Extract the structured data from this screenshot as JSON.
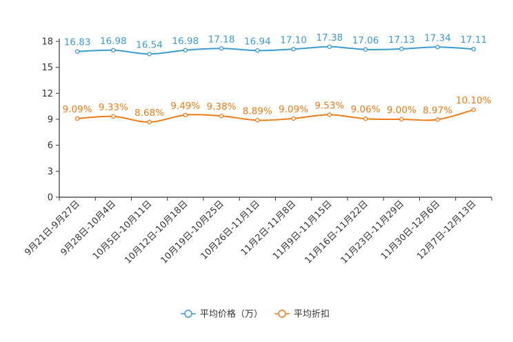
{
  "chart_data": {
    "type": "line",
    "categories": [
      "9月21日-9月27日",
      "9月28日-10月4日",
      "10月5日-10月11日",
      "10月12日-10月18日",
      "10月19日-10月25日",
      "10月26日-11月1日",
      "11月2日-11月8日",
      "11月9日-11月15日",
      "11月16日-11月22日",
      "11月23日-11月29日",
      "11月30日-12月6日",
      "12月7日-12月13日"
    ],
    "series": [
      {
        "name": "平均价格（万）",
        "color": "#3a9bd0",
        "values": [
          16.83,
          16.98,
          16.54,
          16.98,
          17.18,
          16.94,
          17.1,
          17.38,
          17.06,
          17.13,
          17.34,
          17.11
        ],
        "labels": [
          "16.83",
          "16.98",
          "16.54",
          "16.98",
          "17.18",
          "16.94",
          "17.10",
          "17.38",
          "17.06",
          "17.13",
          "17.34",
          "17.11"
        ]
      },
      {
        "name": "平均折扣",
        "color": "#f07a12",
        "values": [
          9.09,
          9.33,
          8.68,
          9.49,
          9.38,
          8.89,
          9.09,
          9.53,
          9.06,
          9.0,
          8.97,
          10.1
        ],
        "labels": [
          "9.09%",
          "9.33%",
          "8.68%",
          "9.49%",
          "9.38%",
          "8.89%",
          "9.09%",
          "9.53%",
          "9.06%",
          "9.00%",
          "8.97%",
          "10.10%"
        ]
      }
    ],
    "yticks": [
      "0",
      "3",
      "6",
      "9",
      "12",
      "15",
      "18"
    ],
    "ylim": [
      0,
      18
    ],
    "grid": false,
    "legend_position": "bottom-center",
    "title": "",
    "xlabel": "",
    "ylabel": ""
  }
}
